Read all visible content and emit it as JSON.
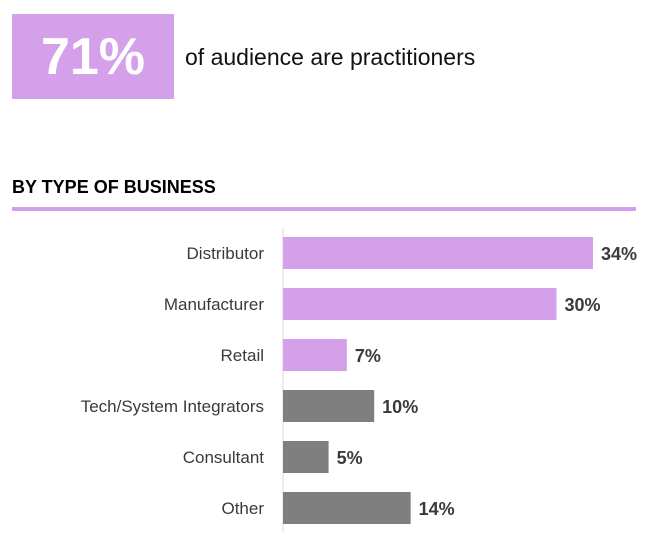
{
  "headline": {
    "value": "71%",
    "caption": "of audience are practitioners"
  },
  "section": {
    "title": "BY TYPE OF BUSINESS"
  },
  "colors": {
    "accent": "#d4a0ea",
    "practitioner_bar": "#d4a0ea",
    "other_bar": "#7f7f7f",
    "label_text": "#3a3a3a"
  },
  "chart_data": {
    "type": "bar",
    "orientation": "horizontal",
    "title": "BY TYPE OF BUSINESS",
    "categories": [
      "Distributor",
      "Manufacturer",
      "Retail",
      "Tech/System Integrators",
      "Consultant",
      "Other"
    ],
    "values": [
      34,
      30,
      7,
      10,
      5,
      14
    ],
    "value_labels": [
      "34%",
      "30%",
      "7%",
      "10%",
      "5%",
      "14%"
    ],
    "bar_colors": [
      "#d4a0ea",
      "#d4a0ea",
      "#d4a0ea",
      "#7f7f7f",
      "#7f7f7f",
      "#7f7f7f"
    ],
    "xlim": [
      0,
      34
    ],
    "grid": false,
    "legend": "none"
  }
}
